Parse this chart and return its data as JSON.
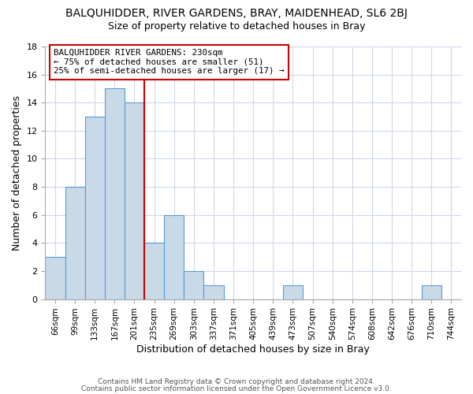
{
  "title": "BALQUHIDDER, RIVER GARDENS, BRAY, MAIDENHEAD, SL6 2BJ",
  "subtitle": "Size of property relative to detached houses in Bray",
  "xlabel": "Distribution of detached houses by size in Bray",
  "ylabel": "Number of detached properties",
  "bar_labels": [
    "66sqm",
    "99sqm",
    "133sqm",
    "167sqm",
    "201sqm",
    "235sqm",
    "269sqm",
    "303sqm",
    "337sqm",
    "371sqm",
    "405sqm",
    "439sqm",
    "473sqm",
    "507sqm",
    "540sqm",
    "574sqm",
    "608sqm",
    "642sqm",
    "676sqm",
    "710sqm",
    "744sqm"
  ],
  "bar_values": [
    3,
    8,
    13,
    15,
    14,
    4,
    6,
    2,
    1,
    0,
    0,
    0,
    1,
    0,
    0,
    0,
    0,
    0,
    0,
    1,
    0
  ],
  "bar_color": "#c8d9e8",
  "bar_edgecolor": "#5b9bd5",
  "vline_x": 4.5,
  "vline_color": "#cc0000",
  "annotation_text": "BALQUHIDDER RIVER GARDENS: 230sqm\n← 75% of detached houses are smaller (51)\n25% of semi-detached houses are larger (17) →",
  "annotation_box_edgecolor": "#cc0000",
  "ylim": [
    0,
    18
  ],
  "yticks": [
    0,
    2,
    4,
    6,
    8,
    10,
    12,
    14,
    16,
    18
  ],
  "footer1": "Contains HM Land Registry data © Crown copyright and database right 2024.",
  "footer2": "Contains public sector information licensed under the Open Government Licence v3.0.",
  "background_color": "#ffffff",
  "grid_color": "#d0d8e8"
}
